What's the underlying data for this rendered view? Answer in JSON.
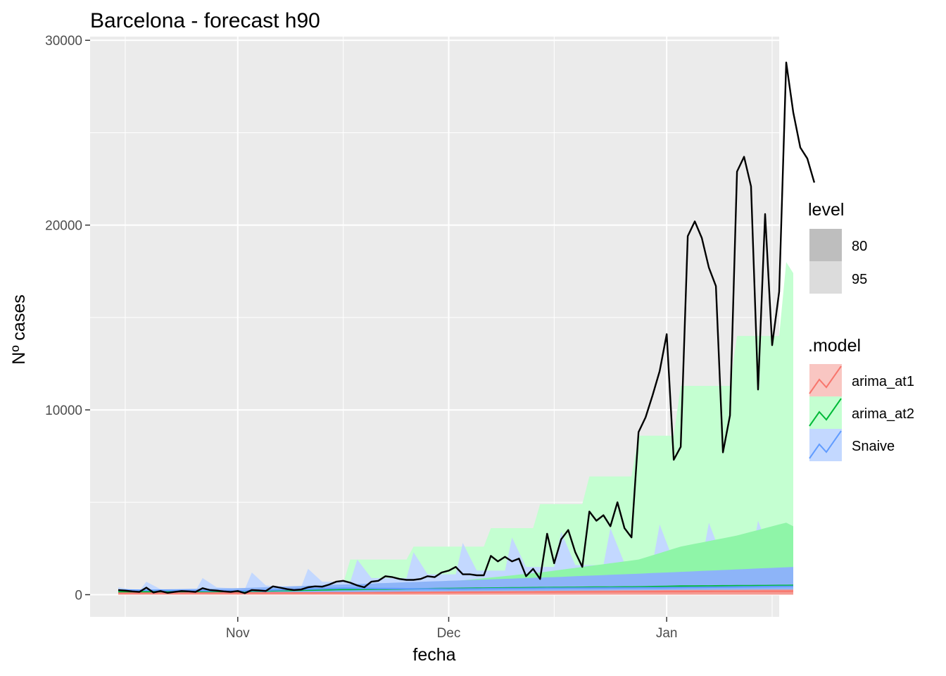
{
  "chart_data": {
    "type": "line",
    "title": "Barcelona - forecast h90",
    "xlabel": "fecha",
    "ylabel": "Nº cases",
    "x_range": [
      "2020-10-11",
      "2021-01-17"
    ],
    "ylim": [
      -1200,
      30200
    ],
    "y_ticks": [
      0,
      10000,
      20000,
      30000
    ],
    "x_ticks": [
      {
        "date": "2020-11-01",
        "label": "Nov"
      },
      {
        "date": "2020-12-01",
        "label": "Dec"
      },
      {
        "date": "2021-01-01",
        "label": "Jan"
      }
    ],
    "x_minor_ticks": [
      "2020-10-16",
      "2020-11-16",
      "2020-12-16",
      "2021-01-16"
    ],
    "grid": true,
    "legend_position": "right",
    "actual": {
      "color": "#000000",
      "points": [
        [
          "2020-10-15",
          250
        ],
        [
          "2020-10-16",
          220
        ],
        [
          "2020-10-17",
          180
        ],
        [
          "2020-10-18",
          150
        ],
        [
          "2020-10-19",
          380
        ],
        [
          "2020-10-20",
          120
        ],
        [
          "2020-10-21",
          200
        ],
        [
          "2020-10-22",
          100
        ],
        [
          "2020-10-23",
          150
        ],
        [
          "2020-10-24",
          200
        ],
        [
          "2020-10-25",
          180
        ],
        [
          "2020-10-26",
          150
        ],
        [
          "2020-10-27",
          350
        ],
        [
          "2020-10-28",
          250
        ],
        [
          "2020-10-29",
          220
        ],
        [
          "2020-10-30",
          180
        ],
        [
          "2020-10-31",
          150
        ],
        [
          "2020-11-01",
          200
        ],
        [
          "2020-11-02",
          80
        ],
        [
          "2020-11-03",
          250
        ],
        [
          "2020-11-04",
          230
        ],
        [
          "2020-11-05",
          200
        ],
        [
          "2020-11-06",
          450
        ],
        [
          "2020-11-07",
          380
        ],
        [
          "2020-11-08",
          300
        ],
        [
          "2020-11-09",
          250
        ],
        [
          "2020-11-10",
          280
        ],
        [
          "2020-11-11",
          400
        ],
        [
          "2020-11-12",
          450
        ],
        [
          "2020-11-13",
          430
        ],
        [
          "2020-11-14",
          550
        ],
        [
          "2020-11-15",
          700
        ],
        [
          "2020-11-16",
          750
        ],
        [
          "2020-11-17",
          650
        ],
        [
          "2020-11-18",
          500
        ],
        [
          "2020-11-19",
          400
        ],
        [
          "2020-11-20",
          700
        ],
        [
          "2020-11-21",
          750
        ],
        [
          "2020-11-22",
          1000
        ],
        [
          "2020-11-23",
          950
        ],
        [
          "2020-11-24",
          850
        ],
        [
          "2020-11-25",
          800
        ],
        [
          "2020-11-26",
          800
        ],
        [
          "2020-11-27",
          850
        ],
        [
          "2020-11-28",
          1000
        ],
        [
          "2020-11-29",
          950
        ],
        [
          "2020-11-30",
          1200
        ],
        [
          "2020-12-01",
          1300
        ],
        [
          "2020-12-02",
          1500
        ],
        [
          "2020-12-03",
          1100
        ],
        [
          "2020-12-04",
          1100
        ],
        [
          "2020-12-05",
          1050
        ],
        [
          "2020-12-06",
          1050
        ],
        [
          "2020-12-07",
          2100
        ],
        [
          "2020-12-08",
          1800
        ],
        [
          "2020-12-09",
          2050
        ],
        [
          "2020-12-10",
          1800
        ],
        [
          "2020-12-11",
          1950
        ],
        [
          "2020-12-12",
          1000
        ],
        [
          "2020-12-13",
          1400
        ],
        [
          "2020-12-14",
          850
        ],
        [
          "2020-12-15",
          3300
        ],
        [
          "2020-12-16",
          1700
        ],
        [
          "2020-12-17",
          3000
        ],
        [
          "2020-12-18",
          3500
        ],
        [
          "2020-12-19",
          2300
        ],
        [
          "2020-12-20",
          1500
        ],
        [
          "2020-12-21",
          4500
        ],
        [
          "2020-12-22",
          4000
        ],
        [
          "2020-12-23",
          4300
        ],
        [
          "2020-12-24",
          3700
        ],
        [
          "2020-12-25",
          5000
        ],
        [
          "2020-12-26",
          3600
        ],
        [
          "2020-12-27",
          3100
        ],
        [
          "2020-12-28",
          8800
        ],
        [
          "2020-12-29",
          9600
        ],
        [
          "2020-12-30",
          10800
        ],
        [
          "2020-12-31",
          12100
        ],
        [
          "2021-01-01",
          14100
        ],
        [
          "2021-01-02",
          7300
        ],
        [
          "2021-01-03",
          8000
        ],
        [
          "2021-01-04",
          19400
        ],
        [
          "2021-01-05",
          20200
        ],
        [
          "2021-01-06",
          19300
        ],
        [
          "2021-01-07",
          17700
        ],
        [
          "2021-01-08",
          16700
        ],
        [
          "2021-01-09",
          7700
        ],
        [
          "2021-01-10",
          9700
        ],
        [
          "2021-01-11",
          22900
        ],
        [
          "2021-01-12",
          23700
        ],
        [
          "2021-01-13",
          22100
        ],
        [
          "2021-01-14",
          11100
        ],
        [
          "2021-01-15",
          20600
        ],
        [
          "2021-01-16",
          13500
        ],
        [
          "2021-01-17",
          16400
        ],
        [
          "2021-01-18",
          28800
        ],
        [
          "2021-01-19",
          26100
        ],
        [
          "2021-01-20",
          24200
        ],
        [
          "2021-01-21",
          23600
        ],
        [
          "2021-01-22",
          22300
        ]
      ]
    },
    "legend": {
      "level": {
        "title": "level",
        "items": [
          {
            "label": "80",
            "color": "#bebebe"
          },
          {
            "label": "95",
            "color": "#dcdcdc"
          }
        ]
      },
      "model": {
        "title": ".model",
        "items": [
          {
            "label": "arima_at1",
            "line": "#F8766D",
            "fill": "#f9c6c2"
          },
          {
            "label": "arima_at2",
            "line": "#00BA38",
            "fill": "#c4ffd1"
          },
          {
            "label": "Snaive",
            "line": "#619CFF",
            "fill": "#c3d8ff"
          }
        ]
      }
    },
    "forecast": {
      "start": "2020-10-15",
      "end": "2021-01-19",
      "models": [
        {
          "name": "arima_at2",
          "line": "#00BA38",
          "fill95": "#c4ffd1",
          "fill80": "#8ff5a8",
          "hi95_points": [
            [
              "2020-10-15",
              150
            ],
            [
              "2020-10-31",
              200
            ],
            [
              "2020-11-01",
              280
            ],
            [
              "2020-11-16",
              600
            ],
            [
              "2020-11-17",
              1900
            ],
            [
              "2020-11-25",
              1900
            ],
            [
              "2020-11-26",
              2600
            ],
            [
              "2020-12-06",
              2600
            ],
            [
              "2020-12-07",
              3600
            ],
            [
              "2020-12-13",
              3600
            ],
            [
              "2020-12-14",
              4900
            ],
            [
              "2020-12-20",
              4900
            ],
            [
              "2020-12-21",
              6400
            ],
            [
              "2020-12-27",
              6400
            ],
            [
              "2020-12-28",
              8600
            ],
            [
              "2021-01-02",
              8600
            ],
            [
              "2021-01-03",
              11300
            ],
            [
              "2021-01-10",
              11300
            ],
            [
              "2021-01-11",
              14000
            ],
            [
              "2021-01-17",
              14000
            ],
            [
              "2021-01-18",
              18000
            ],
            [
              "2021-01-19",
              17400
            ]
          ],
          "hi80_points": [
            [
              "2020-10-15",
              120
            ],
            [
              "2020-11-16",
              350
            ],
            [
              "2020-12-01",
              700
            ],
            [
              "2020-12-14",
              1200
            ],
            [
              "2020-12-28",
              1900
            ],
            [
              "2021-01-03",
              2600
            ],
            [
              "2021-01-11",
              3200
            ],
            [
              "2021-01-18",
              3900
            ],
            [
              "2021-01-19",
              3700
            ]
          ],
          "mean_points": [
            [
              "2020-10-15",
              150
            ],
            [
              "2020-11-01",
              180
            ],
            [
              "2020-11-16",
              280
            ],
            [
              "2020-12-01",
              330
            ],
            [
              "2020-12-14",
              380
            ],
            [
              "2020-12-28",
              420
            ],
            [
              "2021-01-03",
              460
            ],
            [
              "2021-01-11",
              480
            ],
            [
              "2021-01-19",
              500
            ]
          ]
        },
        {
          "name": "Snaive",
          "line": "#619CFF",
          "fill95": "#c3d8ff",
          "fill80": "#8db4f8",
          "hi95_points": [
            [
              "2020-10-15",
              400
            ],
            [
              "2020-10-18",
              200
            ],
            [
              "2020-10-19",
              700
            ],
            [
              "2020-10-21",
              300
            ],
            [
              "2020-10-26",
              200
            ],
            [
              "2020-10-27",
              900
            ],
            [
              "2020-10-29",
              400
            ],
            [
              "2020-11-02",
              300
            ],
            [
              "2020-11-03",
              1200
            ],
            [
              "2020-11-05",
              500
            ],
            [
              "2020-11-10",
              400
            ],
            [
              "2020-11-11",
              1400
            ],
            [
              "2020-11-13",
              700
            ],
            [
              "2020-11-17",
              700
            ],
            [
              "2020-11-18",
              1900
            ],
            [
              "2020-11-20",
              900
            ],
            [
              "2020-11-25",
              900
            ],
            [
              "2020-11-26",
              2300
            ],
            [
              "2020-11-28",
              1100
            ],
            [
              "2020-12-02",
              1100
            ],
            [
              "2020-12-03",
              2800
            ],
            [
              "2020-12-05",
              1300
            ],
            [
              "2020-12-09",
              1300
            ],
            [
              "2020-12-10",
              3100
            ],
            [
              "2020-12-12",
              1500
            ],
            [
              "2020-12-16",
              1500
            ],
            [
              "2020-12-17",
              3400
            ],
            [
              "2020-12-19",
              1600
            ],
            [
              "2020-12-23",
              1600
            ],
            [
              "2020-12-24",
              3600
            ],
            [
              "2020-12-26",
              1700
            ],
            [
              "2020-12-30",
              1700
            ],
            [
              "2020-12-31",
              3800
            ],
            [
              "2021-01-02",
              1800
            ],
            [
              "2021-01-06",
              1800
            ],
            [
              "2021-01-07",
              3900
            ],
            [
              "2021-01-09",
              1900
            ],
            [
              "2021-01-13",
              1900
            ],
            [
              "2021-01-14",
              4000
            ],
            [
              "2021-01-16",
              2000
            ],
            [
              "2021-01-19",
              3000
            ]
          ],
          "hi80_points": [
            [
              "2020-10-15",
              250
            ],
            [
              "2020-11-01",
              350
            ],
            [
              "2020-11-16",
              550
            ],
            [
              "2020-12-01",
              750
            ],
            [
              "2020-12-16",
              950
            ],
            [
              "2021-01-01",
              1200
            ],
            [
              "2021-01-19",
              1500
            ]
          ],
          "mean_points": [
            [
              "2020-10-15",
              250
            ],
            [
              "2020-11-01",
              200
            ],
            [
              "2020-11-16",
              350
            ],
            [
              "2020-12-01",
              300
            ],
            [
              "2020-12-16",
              350
            ],
            [
              "2021-01-01",
              380
            ],
            [
              "2021-01-19",
              450
            ]
          ]
        },
        {
          "name": "arima_at1",
          "line": "#F8766D",
          "fill95": "#f9c6c2",
          "fill80": "#f49a92",
          "hi95_points": [
            [
              "2020-10-15",
              120
            ],
            [
              "2020-11-16",
              160
            ],
            [
              "2020-12-01",
              230
            ],
            [
              "2020-12-16",
              280
            ],
            [
              "2021-01-01",
              330
            ],
            [
              "2021-01-19",
              380
            ]
          ],
          "hi80_points": [
            [
              "2020-10-15",
              100
            ],
            [
              "2020-11-16",
              130
            ],
            [
              "2020-12-01",
              180
            ],
            [
              "2020-12-16",
              210
            ],
            [
              "2021-01-01",
              250
            ],
            [
              "2021-01-19",
              280
            ]
          ],
          "mean_points": [
            [
              "2020-10-15",
              80
            ],
            [
              "2020-11-16",
              100
            ],
            [
              "2020-12-01",
              130
            ],
            [
              "2020-12-16",
              150
            ],
            [
              "2021-01-01",
              170
            ],
            [
              "2021-01-19",
              190
            ]
          ]
        }
      ]
    }
  }
}
